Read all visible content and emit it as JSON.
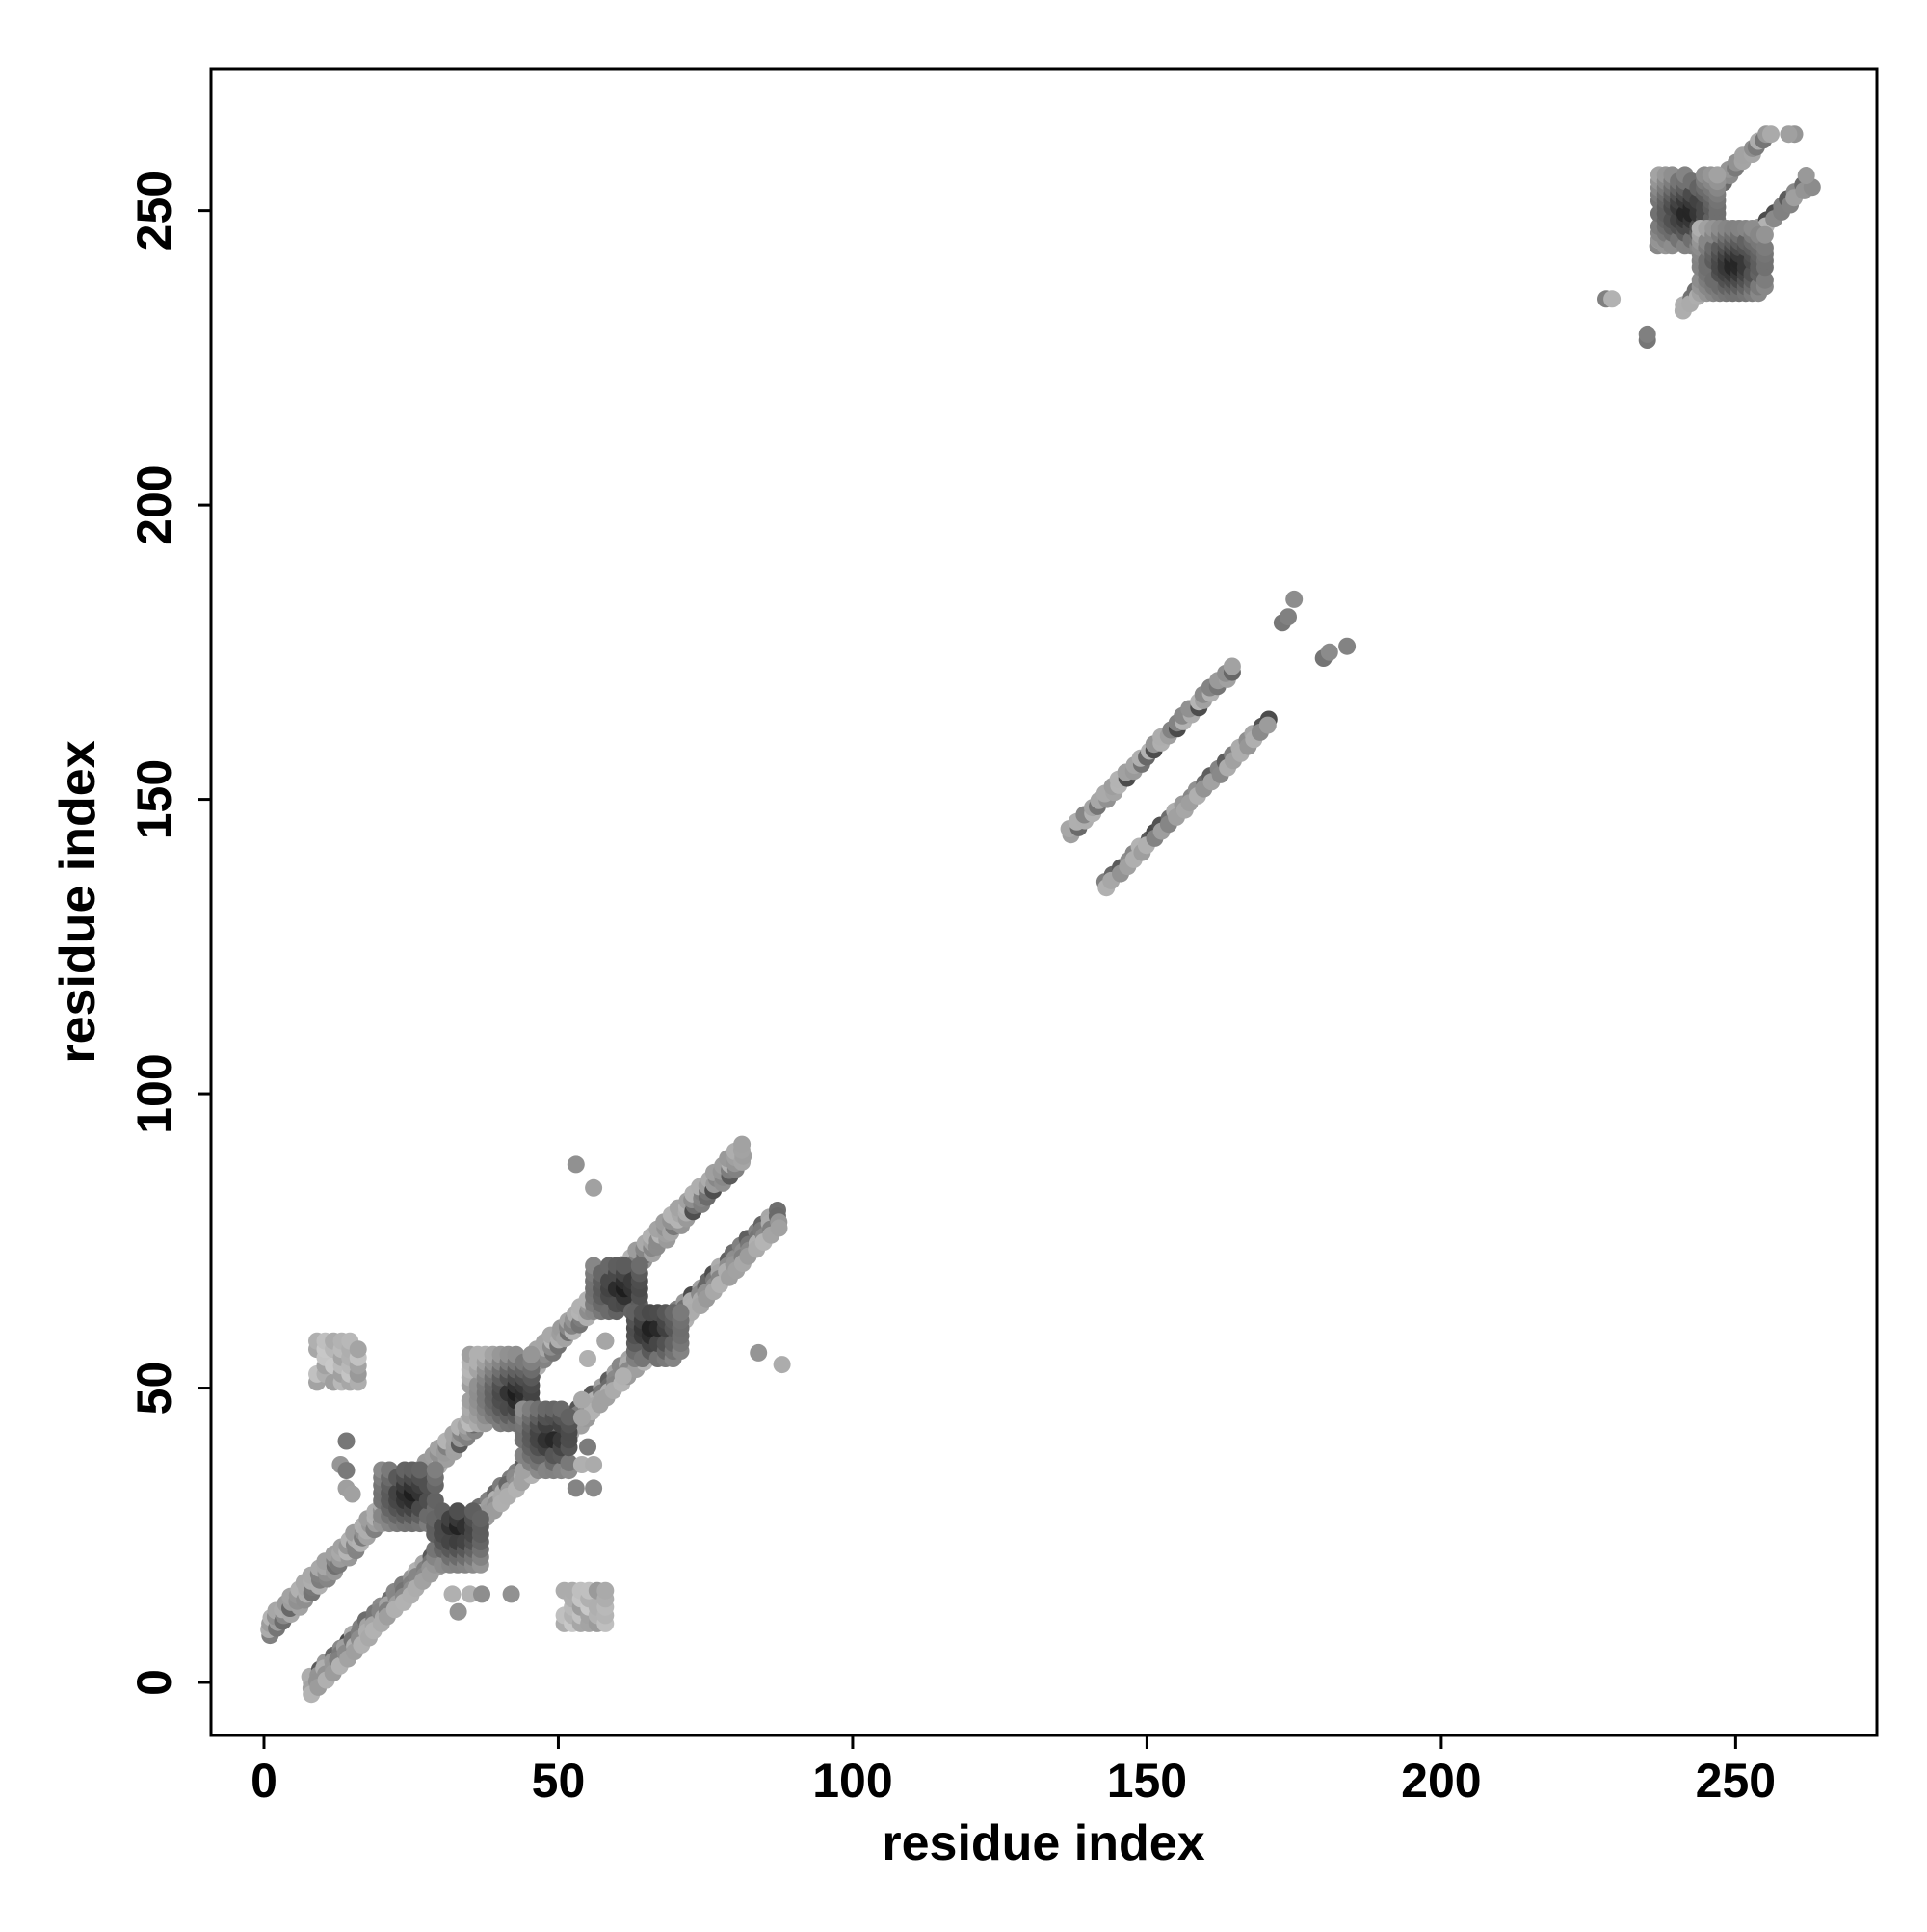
{
  "chart_data": {
    "type": "scatter",
    "title": "",
    "xlabel": "residue index",
    "ylabel": "residue index",
    "xlim": [
      -9,
      274
    ],
    "ylim": [
      -9,
      274
    ],
    "xticks": [
      0,
      50,
      100,
      150,
      200,
      250
    ],
    "yticks": [
      0,
      50,
      100,
      150,
      200,
      250
    ],
    "xtick_labels": [
      "0",
      "50",
      "100",
      "150",
      "200",
      "250"
    ],
    "ytick_labels": [
      "0",
      "50",
      "100",
      "150",
      "200",
      "250"
    ],
    "grid": false,
    "legend": "none",
    "point_color_range": [
      "#d2d2d2",
      "#111111"
    ],
    "description_of_encoding": "",
    "series": [
      {
        "bands": [
          {
            "x0": 1,
            "x1": 82,
            "offset": 7,
            "width": 4,
            "spacing": 1.2
          },
          {
            "x0": 8,
            "x1": 88,
            "offset": -7,
            "width": 4,
            "spacing": 1.2
          },
          {
            "x0": 137,
            "x1": 165,
            "offset": 7,
            "width": 2,
            "spacing": 1.2
          },
          {
            "x0": 143,
            "x1": 171,
            "offset": -7,
            "width": 2,
            "spacing": 1.2
          },
          {
            "x0": 237,
            "x1": 256,
            "offset": 7,
            "width": 2,
            "spacing": 1.2
          },
          {
            "x0": 241,
            "x1": 262,
            "offset": -7,
            "width": 2,
            "spacing": 1.2
          }
        ],
        "blocks": [
          {
            "x0": 20,
            "x1": 30,
            "y0": 27,
            "y1": 37,
            "step": 1.3,
            "dark": [
              25,
              32
            ]
          },
          {
            "x0": 29,
            "x1": 38,
            "y0": 20,
            "y1": 30,
            "step": 1.3,
            "dark": [
              33,
              26
            ]
          },
          {
            "x0": 35,
            "x1": 46,
            "y0": 44,
            "y1": 56,
            "step": 1.3,
            "dark": [
              43,
              49
            ]
          },
          {
            "x0": 44,
            "x1": 53,
            "y0": 36,
            "y1": 47,
            "step": 1.3,
            "dark": [
              49,
              42
            ]
          },
          {
            "x0": 56,
            "x1": 65,
            "y0": 63,
            "y1": 72,
            "step": 1.3,
            "dark": [
              61,
              67
            ]
          },
          {
            "x0": 63,
            "x1": 72,
            "y0": 55,
            "y1": 64,
            "step": 1.3,
            "dark": [
              66,
              60
            ]
          },
          {
            "x0": 237,
            "x1": 247,
            "y0": 244,
            "y1": 257,
            "step": 1.1,
            "dark": [
              242,
              250
            ]
          },
          {
            "x0": 244,
            "x1": 256,
            "y0": 236,
            "y1": 248,
            "step": 1.1,
            "dark": [
              250,
              241
            ]
          },
          {
            "x0": 9,
            "x1": 16,
            "y0": 51,
            "y1": 58,
            "step": 1.4,
            "dark": null
          },
          {
            "x0": 51,
            "x1": 58,
            "y0": 10,
            "y1": 16,
            "step": 1.4,
            "dark": null
          }
        ],
        "points": [
          [
            14,
            41
          ],
          [
            13,
            37
          ],
          [
            14,
            36
          ],
          [
            14,
            33
          ],
          [
            15,
            32
          ],
          [
            32,
            15
          ],
          [
            35,
            15
          ],
          [
            37,
            15
          ],
          [
            42,
            15
          ],
          [
            33,
            12
          ],
          [
            53,
            33
          ],
          [
            56,
            33
          ],
          [
            54,
            37
          ],
          [
            56,
            37
          ],
          [
            55,
            40
          ],
          [
            54,
            48
          ],
          [
            54,
            45
          ],
          [
            53,
            88
          ],
          [
            56,
            84
          ],
          [
            84,
            56
          ],
          [
            88,
            54
          ],
          [
            58,
            58
          ],
          [
            58,
            58
          ],
          [
            55,
            55
          ],
          [
            61,
            52
          ],
          [
            173,
            180
          ],
          [
            174,
            181
          ],
          [
            175,
            184
          ],
          [
            180,
            174
          ],
          [
            181,
            175
          ],
          [
            184,
            176
          ],
          [
            228,
            235
          ],
          [
            229,
            235
          ],
          [
            235,
            228
          ],
          [
            235,
            229
          ],
          [
            260,
            263
          ],
          [
            263,
            254
          ],
          [
            262,
            256
          ],
          [
            259,
            263
          ],
          [
            256,
            263
          ]
        ]
      }
    ]
  }
}
